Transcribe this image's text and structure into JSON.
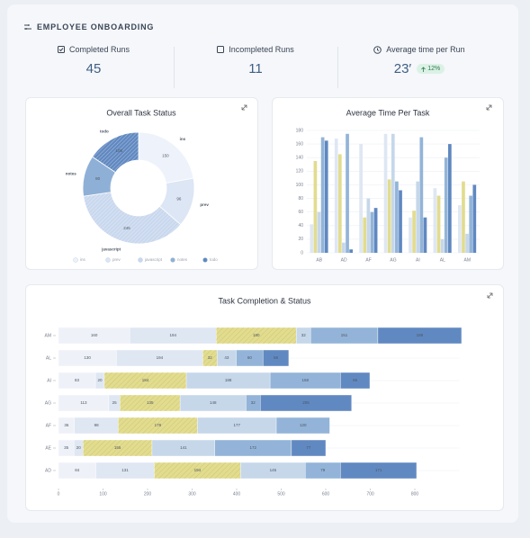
{
  "header": {
    "title": "EMPLOYEE ONBOARDING"
  },
  "kpis": [
    {
      "label": "Completed Runs",
      "value": "45"
    },
    {
      "label": "Incompleted Runs",
      "value": "11"
    },
    {
      "label": "Average time per Run",
      "value": "23′",
      "change": "12%"
    }
  ],
  "chart_data": [
    {
      "type": "donut",
      "title": "Overall Task Status",
      "categories": [
        "ins",
        "prev",
        "javascript",
        "notes",
        "todo"
      ],
      "values": [
        150,
        96,
        245,
        80,
        105
      ],
      "colors": [
        "#eef3fb",
        "#dce6f5",
        "#c9d8ee",
        "#8fb0d6",
        "#6189c1"
      ],
      "hatched": [
        false,
        false,
        true,
        false,
        true
      ]
    },
    {
      "type": "grouped_bar",
      "title": "Average Time Per Task",
      "categories": [
        "AB",
        "AD",
        "AF",
        "AG",
        "AI",
        "AL",
        "AM"
      ],
      "ylim": [
        0,
        180
      ],
      "yticks": [
        0,
        20,
        40,
        60,
        80,
        100,
        120,
        140,
        160,
        180
      ],
      "grid": true,
      "series": [
        {
          "color": "#dfe7f3",
          "values": [
            42,
            168,
            160,
            175,
            52,
            95,
            70
          ]
        },
        {
          "color": "#e2dc8f",
          "values": [
            135,
            145,
            52,
            108,
            62,
            84,
            105
          ]
        },
        {
          "color": "#c6d7ea",
          "values": [
            60,
            15,
            80,
            175,
            105,
            20,
            28
          ]
        },
        {
          "color": "#93b4d8",
          "values": [
            170,
            175,
            60,
            105,
            170,
            140,
            84
          ]
        },
        {
          "color": "#5f88c0",
          "values": [
            165,
            5,
            66,
            92,
            52,
            160,
            100
          ]
        }
      ]
    },
    {
      "type": "stacked_barh",
      "title": "Task Completion & Status",
      "categories": [
        "AM",
        "AL",
        "AI",
        "AG",
        "AF",
        "AE",
        "AD"
      ],
      "xlim": [
        0,
        900
      ],
      "xticks": [
        0,
        100,
        200,
        300,
        400,
        500,
        600,
        700,
        800
      ],
      "series": [
        {
          "color": "#eef2f8",
          "hatched": false,
          "values": [
            160,
            130,
            83,
            113,
            36,
            35,
            84
          ]
        },
        {
          "color": "#dfe7f3",
          "hatched": false,
          "values": [
            194,
            194,
            20,
            25,
            98,
            20,
            131
          ]
        },
        {
          "color": "#e2dc8f",
          "hatched": true,
          "values": [
            180,
            32,
            184,
            135,
            178,
            155,
            194
          ]
        },
        {
          "color": "#c6d7ea",
          "hatched": false,
          "values": [
            32,
            43,
            188,
            148,
            177,
            141,
            145
          ]
        },
        {
          "color": "#93b4d8",
          "hatched": false,
          "values": [
            151,
            60,
            158,
            32,
            120,
            172,
            79
          ]
        },
        {
          "color": "#6189c1",
          "hatched": false,
          "values": [
            188,
            58,
            66,
            205,
            null,
            77,
            171
          ]
        }
      ]
    }
  ]
}
